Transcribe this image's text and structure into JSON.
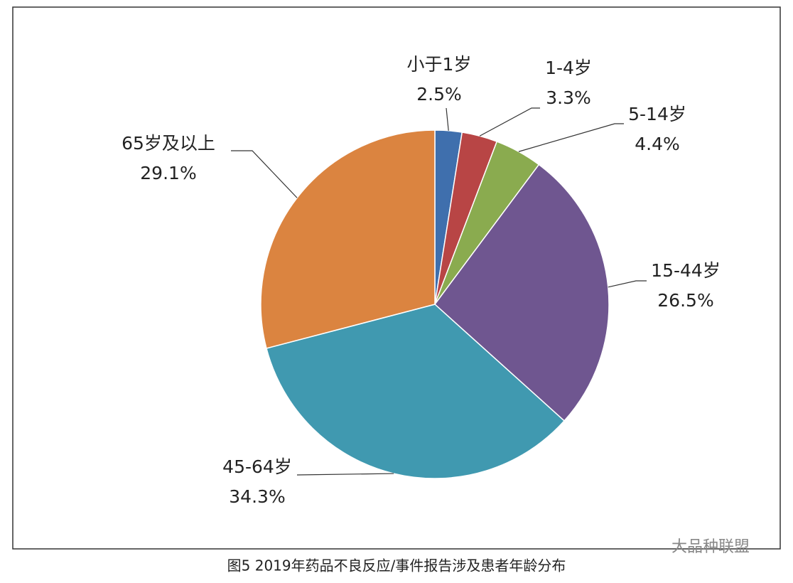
{
  "chart_data": {
    "type": "pie",
    "title": "图5 2019年药品不良反应/事件报告涉及患者年龄分布",
    "categories": [
      "小于1岁",
      "1-4岁",
      "5-14岁",
      "15-44岁",
      "45-64岁",
      "65岁及以上"
    ],
    "values": [
      2.5,
      3.3,
      4.4,
      26.5,
      34.3,
      29.1
    ],
    "value_labels": [
      "2.5%",
      "3.3%",
      "4.4%",
      "26.5%",
      "34.3%",
      "29.1%"
    ],
    "colors": [
      "#3f6fad",
      "#b84545",
      "#8aab4f",
      "#6f5690",
      "#4099b0",
      "#db8440"
    ]
  },
  "watermark": "大品种联盟"
}
